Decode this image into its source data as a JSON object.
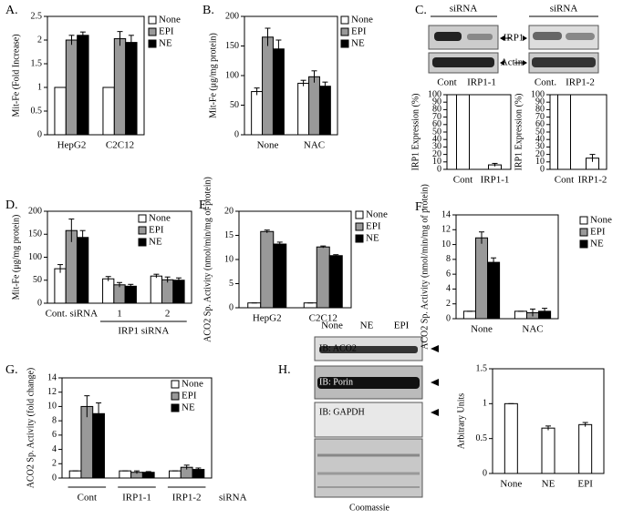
{
  "chart_data": [
    {
      "type": "bar",
      "panel": "A.",
      "ylabel": "Mit-Fe (Fold Increase)",
      "categories": [
        "HepG2",
        "C2C12"
      ],
      "series": [
        {
          "name": "None",
          "color": "#ffffff",
          "values": [
            1,
            1
          ],
          "errors": [
            0,
            0
          ]
        },
        {
          "name": "EPI",
          "color": "#999999",
          "values": [
            2.0,
            2.03
          ],
          "errors": [
            0.1,
            0.15
          ]
        },
        {
          "name": "NE",
          "color": "#000000",
          "values": [
            2.1,
            1.95
          ],
          "errors": [
            0.07,
            0.15
          ]
        }
      ],
      "ylim": [
        0,
        2.5
      ],
      "yticks": [
        0,
        0.5,
        1,
        1.5,
        2,
        2.5
      ]
    },
    {
      "type": "bar",
      "panel": "B.",
      "ylabel": "Mit-Fe (μg/mg protein)",
      "categories": [
        "None",
        "NAC"
      ],
      "series": [
        {
          "name": "None",
          "color": "#ffffff",
          "values": [
            73,
            87
          ],
          "errors": [
            6,
            5
          ]
        },
        {
          "name": "EPI",
          "color": "#999999",
          "values": [
            165,
            98
          ],
          "errors": [
            15,
            10
          ]
        },
        {
          "name": "NE",
          "color": "#000000",
          "values": [
            145,
            82
          ],
          "errors": [
            15,
            7
          ]
        }
      ],
      "ylim": [
        0,
        200
      ],
      "yticks": [
        0,
        50,
        100,
        150,
        200
      ]
    },
    {
      "type": "bar",
      "panel": "C.",
      "ylabel": "IRP1 Expression (%)",
      "categories": [
        "Cont",
        "IRP1-1"
      ],
      "series": [
        {
          "color": "#ffffff",
          "values": [
            100,
            6
          ],
          "errors": [
            0,
            2
          ]
        }
      ],
      "ylim": [
        0,
        100
      ],
      "yticks": [
        0,
        10,
        20,
        30,
        40,
        50,
        60,
        70,
        80,
        90,
        100
      ]
    },
    {
      "type": "bar",
      "ylabel": "IRP1 Expression (%)",
      "categories": [
        "Cont",
        "IRP1-2"
      ],
      "series": [
        {
          "color": "#ffffff",
          "values": [
            100,
            15
          ],
          "errors": [
            0,
            5
          ]
        }
      ],
      "ylim": [
        0,
        100
      ],
      "yticks": [
        0,
        10,
        20,
        30,
        40,
        50,
        60,
        70,
        80,
        90,
        100
      ]
    },
    {
      "type": "bar",
      "panel": "D.",
      "ylabel": "Mit-Fe (μg/mg protein)",
      "categories": [
        "Cont. siRNA",
        "1",
        "2"
      ],
      "annotations": [
        "IRP1 siRNA"
      ],
      "series": [
        {
          "name": "None",
          "color": "#ffffff",
          "values": [
            75,
            53,
            59
          ],
          "errors": [
            9,
            5,
            4
          ]
        },
        {
          "name": "EPI",
          "color": "#999999",
          "values": [
            158,
            40,
            51
          ],
          "errors": [
            25,
            5,
            6
          ]
        },
        {
          "name": "NE",
          "color": "#000000",
          "values": [
            143,
            37,
            50
          ],
          "errors": [
            15,
            4,
            5
          ]
        }
      ],
      "ylim": [
        0,
        200
      ],
      "yticks": [
        0,
        50,
        100,
        150,
        200
      ]
    },
    {
      "type": "bar",
      "panel": "E.",
      "ylabel": "ACO2 Sp. Activity (nmol/min/mg of protein)",
      "categories": [
        "HepG2",
        "C2C12"
      ],
      "series": [
        {
          "name": "None",
          "color": "#ffffff",
          "values": [
            1,
            1
          ],
          "errors": [
            0,
            0
          ]
        },
        {
          "name": "EPI",
          "color": "#999999",
          "values": [
            15.8,
            12.6
          ],
          "errors": [
            0.3,
            0.2
          ]
        },
        {
          "name": "NE",
          "color": "#000000",
          "values": [
            13.2,
            10.8
          ],
          "errors": [
            0.4,
            0.2
          ]
        }
      ],
      "ylim": [
        0,
        20
      ],
      "yticks": [
        0,
        5,
        10,
        15,
        20
      ]
    },
    {
      "type": "bar",
      "panel": "F.",
      "ylabel": "ACO2 Sp. Activity (nmol/min/mg of protein)",
      "categories": [
        "None",
        "NAC"
      ],
      "series": [
        {
          "name": "None",
          "color": "#ffffff",
          "values": [
            1,
            1
          ],
          "errors": [
            0,
            0
          ]
        },
        {
          "name": "EPI",
          "color": "#999999",
          "values": [
            10.9,
            0.8
          ],
          "errors": [
            0.8,
            0.5
          ]
        },
        {
          "name": "NE",
          "color": "#000000",
          "values": [
            7.6,
            1
          ],
          "errors": [
            0.6,
            0.4
          ]
        }
      ],
      "ylim": [
        0,
        14
      ],
      "yticks": [
        0,
        2,
        4,
        6,
        8,
        10,
        12,
        14
      ]
    },
    {
      "type": "bar",
      "panel": "G.",
      "ylabel": "ACO2 Sp. Activity (fold change)",
      "categories": [
        "Cont",
        "IRP1-1",
        "IRP1-2"
      ],
      "annotations": [
        "siRNA"
      ],
      "series": [
        {
          "name": "None",
          "color": "#ffffff",
          "values": [
            1,
            1,
            1
          ],
          "errors": [
            0,
            0,
            0
          ]
        },
        {
          "name": "EPI",
          "color": "#999999",
          "values": [
            10,
            0.8,
            1.5
          ],
          "errors": [
            1.5,
            0.2,
            0.3
          ]
        },
        {
          "name": "NE",
          "color": "#000000",
          "values": [
            9,
            0.8,
            1.2
          ],
          "errors": [
            1.5,
            0.1,
            0.2
          ]
        }
      ],
      "ylim": [
        0,
        14
      ],
      "yticks": [
        0,
        2,
        4,
        6,
        8,
        10,
        12,
        14
      ]
    },
    {
      "type": "bar",
      "panel": "H.",
      "ylabel": "Arbitrary Units",
      "categories": [
        "None",
        "NE",
        "EPI"
      ],
      "series": [
        {
          "color": "#ffffff",
          "values": [
            1,
            0.65,
            0.7
          ],
          "errors": [
            0,
            0.03,
            0.03
          ]
        }
      ],
      "ylim": [
        0,
        1.5
      ],
      "yticks": [
        0,
        0.5,
        1,
        1.5
      ]
    }
  ],
  "blot_c": {
    "header": [
      "siRNA",
      "siRNA"
    ],
    "bands": [
      "IRP1",
      "Actin"
    ],
    "lanes_left": [
      "Cont",
      "IRP1-1"
    ],
    "lanes_right": [
      "Cont.",
      "IRP1-2"
    ]
  },
  "blot_h": {
    "lanes": [
      "None",
      "NE",
      "EPI"
    ],
    "bands": [
      "IB: ACO2",
      "IB: Porin",
      "IB: GAPDH"
    ],
    "stain": "Coomassie"
  }
}
